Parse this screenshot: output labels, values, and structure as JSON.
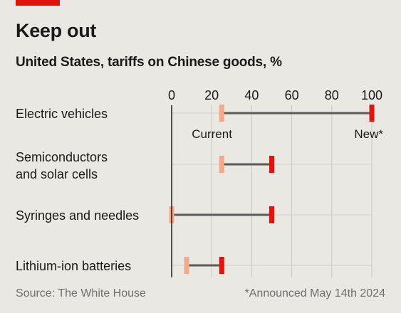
{
  "header": {
    "title": "Keep out",
    "subtitle": "United States, tariffs on Chinese goods, %"
  },
  "footer": {
    "source": "Source: The White House",
    "footnote": "*Announced May 14th 2024"
  },
  "colors": {
    "current": "#f4a98c",
    "new": "#e3120b",
    "connector": "#5a5a5a",
    "brand": "#e3120b"
  },
  "chart_data": {
    "type": "dot-range",
    "xlim": [
      0,
      100
    ],
    "xticks": [
      0,
      20,
      40,
      60,
      80,
      100
    ],
    "grid": true,
    "categories": [
      {
        "label_lines": [
          "Electric vehicles"
        ],
        "current": 25,
        "new": 100
      },
      {
        "label_lines": [
          "Semiconductors",
          "and solar cells"
        ],
        "current": 25,
        "new": 50
      },
      {
        "label_lines": [
          "Syringes and needles"
        ],
        "current": 0,
        "new": 50
      },
      {
        "label_lines": [
          "Lithium-ion batteries"
        ],
        "current": 7.5,
        "new": 25
      }
    ],
    "annotations": {
      "current": "Current",
      "new": "New*"
    }
  }
}
